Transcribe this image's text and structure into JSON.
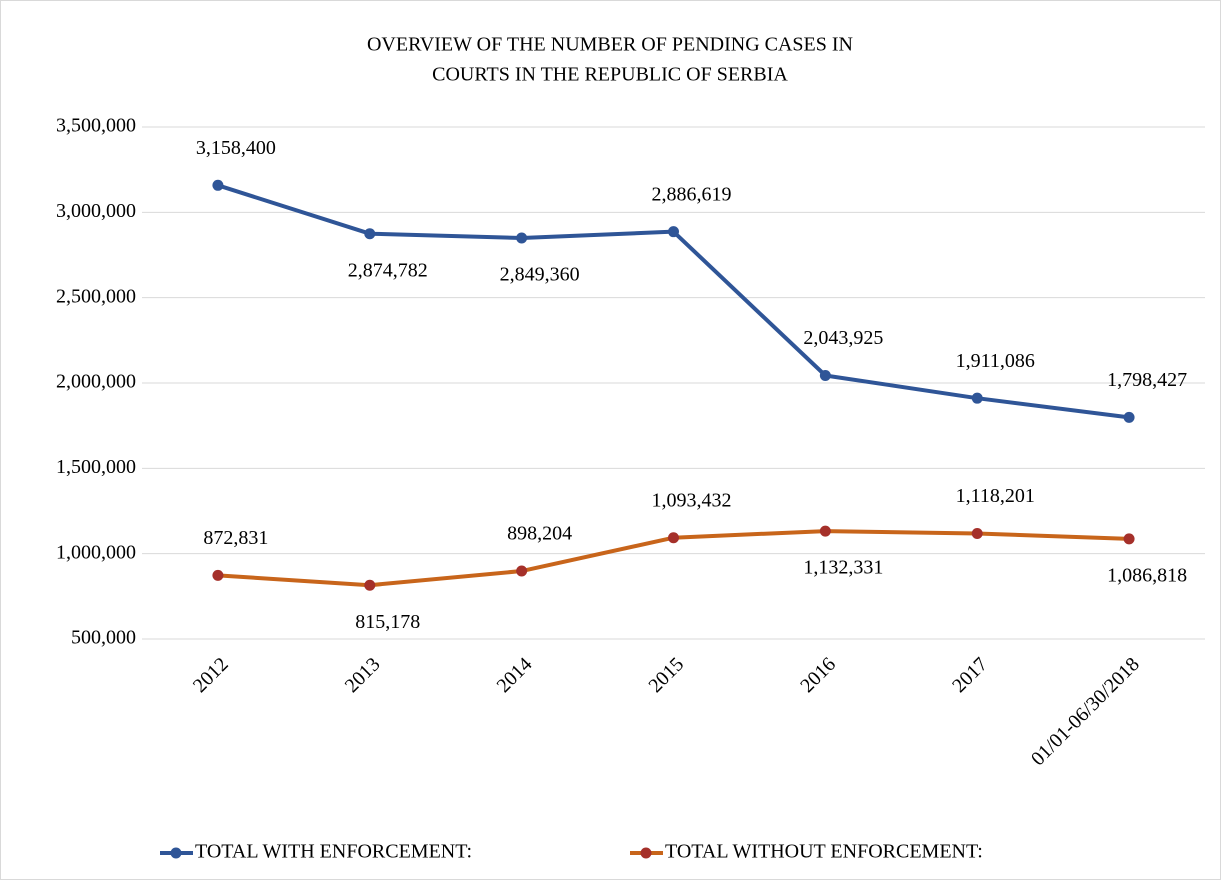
{
  "chart_data": {
    "type": "line",
    "title": [
      "OVERVIEW OF THE NUMBER OF PENDING CASES IN",
      "COURTS IN THE REPUBLIC OF SERBIA"
    ],
    "categories": [
      "2012",
      "2013",
      "2014",
      "2015",
      "2016",
      "2017",
      "01/01-06/30/2018"
    ],
    "series": [
      {
        "name": "TOTAL WITH ENFORCEMENT:",
        "color": "#2f5597",
        "marker_color": "#2f5597",
        "values": [
          3158400,
          2874782,
          2849360,
          2886619,
          2043925,
          1911086,
          1798427
        ],
        "value_labels": [
          "3,158,400",
          "2,874,782",
          "2,849,360",
          "2,886,619",
          "2,043,925",
          "1,911,086",
          "1,798,427"
        ],
        "label_positions": [
          "above",
          "below",
          "below",
          "above",
          "above",
          "above",
          "above"
        ]
      },
      {
        "name": "TOTAL WITHOUT ENFORCEMENT:",
        "color": "#c8651b",
        "marker_color": "#a5302a",
        "values": [
          872831,
          815178,
          898204,
          1093432,
          1132331,
          1118201,
          1086818
        ],
        "value_labels": [
          "872,831",
          "815,178",
          "898,204",
          "1,093,432",
          "1,132,331",
          "1,118,201",
          "1,086,818"
        ],
        "label_positions": [
          "above",
          "below",
          "above",
          "above",
          "below",
          "above",
          "below"
        ]
      }
    ],
    "ylim": [
      500000,
      3500000
    ],
    "yticks": [
      {
        "value": 500000,
        "label": "500,000"
      },
      {
        "value": 1000000,
        "label": "1,000,000"
      },
      {
        "value": 1500000,
        "label": "1,500,000"
      },
      {
        "value": 2000000,
        "label": "2,000,000"
      },
      {
        "value": 2500000,
        "label": "2,500,000"
      },
      {
        "value": 3000000,
        "label": "3,000,000"
      },
      {
        "value": 3500000,
        "label": "3,500,000"
      }
    ],
    "grid": true,
    "legend": "bottom"
  }
}
